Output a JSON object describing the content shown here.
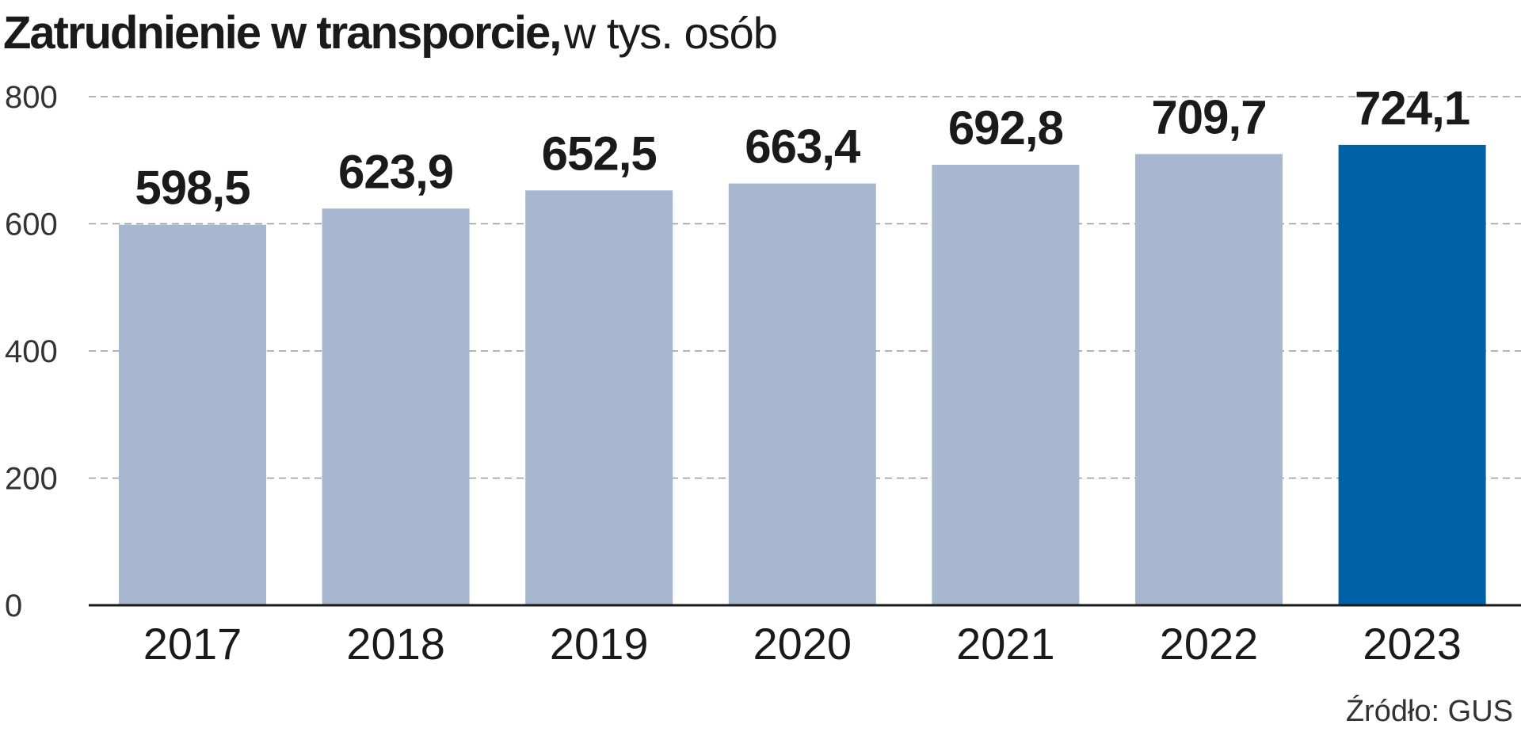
{
  "chart_data": {
    "type": "bar",
    "title": "Zatrudnienie w transporcie,",
    "subtitle": "w tys. osób",
    "categories": [
      "2017",
      "2018",
      "2019",
      "2020",
      "2021",
      "2022",
      "2023"
    ],
    "values": [
      598.5,
      623.9,
      652.5,
      663.4,
      692.8,
      709.7,
      724.1
    ],
    "value_labels": [
      "598,5",
      "623,9",
      "652,5",
      "663,4",
      "692,8",
      "709,7",
      "724,1"
    ],
    "ylim": [
      0,
      800
    ],
    "yticks": [
      0,
      200,
      400,
      600,
      800
    ],
    "grid": true,
    "highlight_index": 6,
    "colors": {
      "bar": "#a6b7cf",
      "highlight": "#0061a6",
      "grid": "#9a9a9a",
      "axis": "#1a1a1a"
    },
    "source": "Źródło: GUS"
  }
}
